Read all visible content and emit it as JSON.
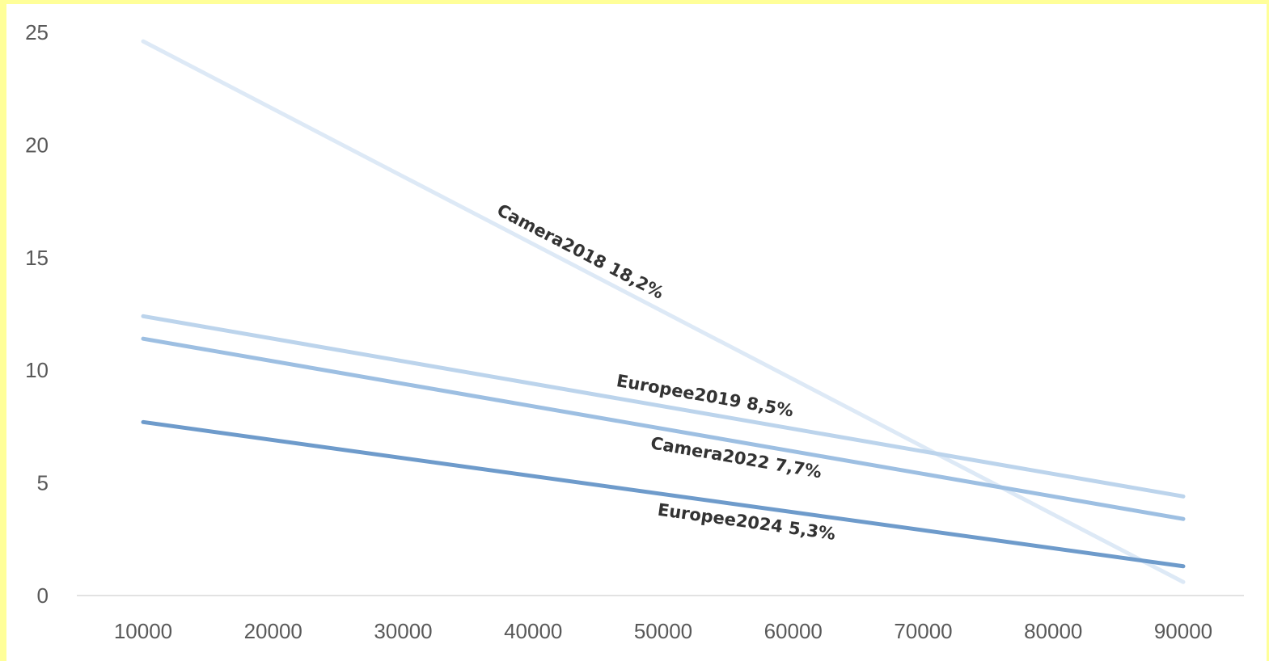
{
  "chart_data": {
    "type": "line",
    "title": "",
    "xlabel": "",
    "ylabel": "",
    "x": [
      10000,
      90000
    ],
    "x_ticks": [
      "10000",
      "20000",
      "30000",
      "40000",
      "50000",
      "60000",
      "70000",
      "80000",
      "90000"
    ],
    "y_ticks": [
      "0",
      "5",
      "10",
      "15",
      "20",
      "25"
    ],
    "ylim": [
      0,
      25
    ],
    "grid": false,
    "legend": "none",
    "series": [
      {
        "name": "Camera2018",
        "label": "Camera2018   18,2%",
        "values": [
          24.6,
          0.6
        ],
        "color": "#dde9f6"
      },
      {
        "name": "Europee2019",
        "label": "Europee2019   8,5%",
        "values": [
          12.4,
          4.4
        ],
        "color": "#bcd4ec"
      },
      {
        "name": "Camera2022",
        "label": "Camera2022   7,7%",
        "values": [
          11.4,
          3.4
        ],
        "color": "#9dbfe2"
      },
      {
        "name": "Europee2024",
        "label": "Europee2024   5,3%",
        "values": [
          7.7,
          1.3
        ],
        "color": "#6e9bcb"
      }
    ]
  }
}
